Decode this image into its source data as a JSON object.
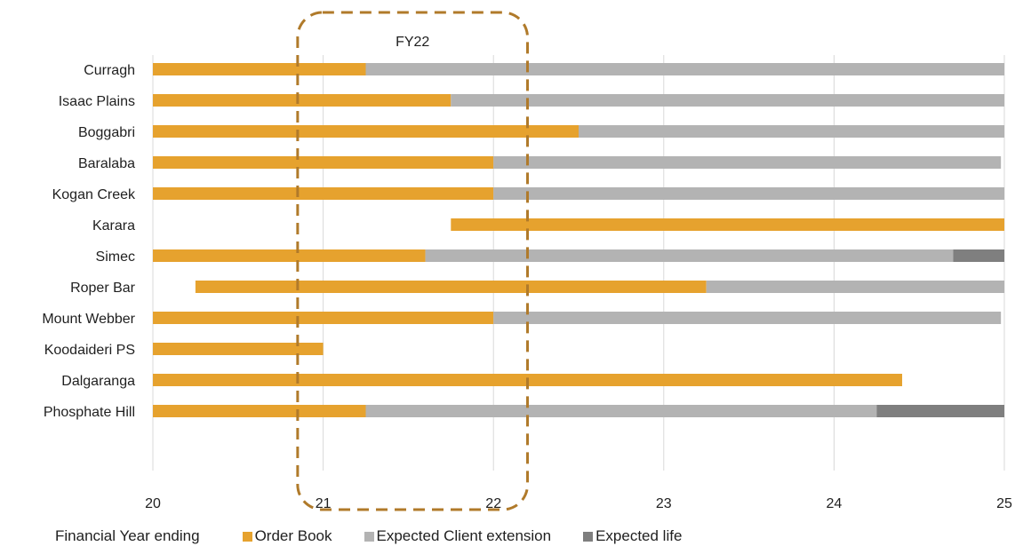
{
  "chart_data": {
    "type": "bar",
    "orientation": "horizontal",
    "stacked": true,
    "categories": [
      "Curragh",
      "Isaac Plains",
      "Boggabri",
      "Baralaba",
      "Kogan Creek",
      "Karara",
      "Simec",
      "Roper Bar",
      "Mount Webber",
      "Koodaideri PS",
      "Dalgaranga",
      "Phosphate Hill"
    ],
    "series": [
      {
        "name": "Order Book",
        "color": "#e6a22e",
        "ranges": [
          [
            20,
            21.25
          ],
          [
            20,
            21.75
          ],
          [
            20,
            22.5
          ],
          [
            20,
            22.0
          ],
          [
            20,
            22.0
          ],
          [
            21.75,
            25.0
          ],
          [
            20,
            21.6
          ],
          [
            20.25,
            23.25
          ],
          [
            20,
            22.0
          ],
          [
            20,
            21.0
          ],
          [
            20,
            24.4
          ],
          [
            20,
            21.25
          ]
        ]
      },
      {
        "name": "Expected Client extension",
        "color": "#b3b3b3",
        "ranges": [
          [
            21.25,
            25.0
          ],
          [
            21.75,
            25.0
          ],
          [
            22.5,
            25.0
          ],
          [
            22.0,
            24.98
          ],
          [
            22.0,
            25.0
          ],
          null,
          [
            21.6,
            24.7
          ],
          [
            23.25,
            25.0
          ],
          [
            22.0,
            24.98
          ],
          null,
          null,
          [
            21.25,
            24.25
          ]
        ]
      },
      {
        "name": "Expected life",
        "color": "#7f7f7f",
        "ranges": [
          null,
          null,
          null,
          null,
          null,
          null,
          [
            24.7,
            25.0
          ],
          null,
          null,
          null,
          null,
          [
            24.25,
            25.0
          ]
        ]
      }
    ],
    "xlim": [
      20,
      25
    ],
    "xticks": [
      "20",
      "21",
      "22",
      "23",
      "24",
      "25"
    ],
    "xlabel": "Financial Year ending",
    "grid": "vertical",
    "legend_position": "bottom",
    "annotation": {
      "label": "FY22",
      "range": [
        20.85,
        22.2
      ],
      "style": "dashed-box",
      "color": "#b07a2a"
    }
  },
  "legend": {
    "caption": "Financial Year ending",
    "items": [
      {
        "label": "Order Book",
        "color": "#e6a22e"
      },
      {
        "label": "Expected Client extension",
        "color": "#b3b3b3"
      },
      {
        "label": "Expected life",
        "color": "#7f7f7f"
      }
    ]
  }
}
